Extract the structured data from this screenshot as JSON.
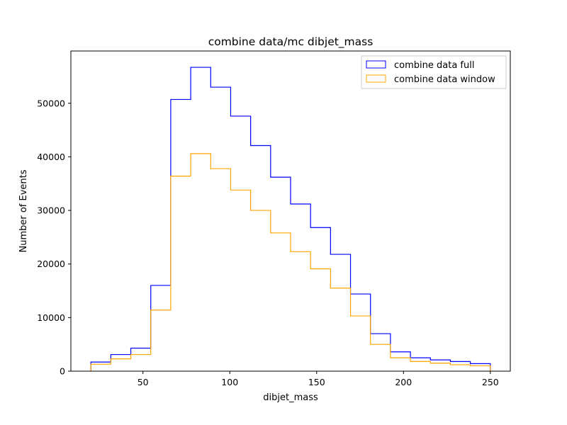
{
  "chart_data": {
    "type": "histogram-step",
    "title": "combine data/mc dibjet_mass",
    "xlabel": "dibjet_mass",
    "ylabel": "Number of Events",
    "xlim": [
      8.5,
      261.5
    ],
    "ylim": [
      0,
      59750
    ],
    "x_ticks": [
      50,
      100,
      150,
      200,
      250
    ],
    "y_ticks": [
      0,
      10000,
      20000,
      30000,
      40000,
      50000
    ],
    "bin_edges": [
      20,
      31.5,
      43,
      54.5,
      66,
      77.5,
      89,
      100.5,
      112,
      123.5,
      135,
      146.5,
      158,
      169.5,
      181,
      192.5,
      204,
      215.5,
      227,
      238.5,
      250
    ],
    "series": [
      {
        "name": "combine data full",
        "color": "#0000ff",
        "values": [
          1700,
          3100,
          4300,
          16000,
          50700,
          56700,
          53000,
          47600,
          42100,
          36200,
          31200,
          26800,
          21800,
          14400,
          7000,
          3600,
          2500,
          2100,
          1800,
          1400
        ]
      },
      {
        "name": "combine data window",
        "color": "#ffa500",
        "values": [
          1300,
          2300,
          3100,
          11400,
          36400,
          40600,
          37800,
          33800,
          30000,
          25800,
          22300,
          19100,
          15500,
          10300,
          5000,
          2500,
          1800,
          1500,
          1200,
          1000
        ]
      }
    ],
    "grid": false,
    "legend_position": "top-right"
  }
}
